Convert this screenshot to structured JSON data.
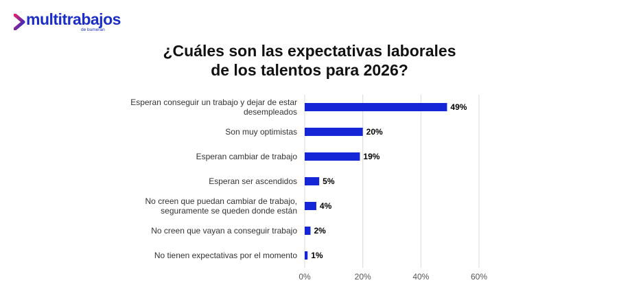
{
  "logo": {
    "brand": "multitrabajos",
    "sub": "de bumeran",
    "color": "#1b2ec8"
  },
  "chart_data": {
    "type": "bar",
    "orientation": "horizontal",
    "title_lines": [
      "¿Cuáles son las expectativas laborales",
      "de los talentos para 2026?"
    ],
    "categories": [
      [
        "Esperan conseguir un trabajo y dejar de estar",
        "desempleados"
      ],
      [
        "Son muy optimistas"
      ],
      [
        "Esperan cambiar de trabajo"
      ],
      [
        "Esperan ser ascendidos"
      ],
      [
        "No creen que puedan cambiar de trabajo,",
        "seguramente se queden donde están"
      ],
      [
        "No creen que vayan a conseguir trabajo"
      ],
      [
        "No tienen expectativas por el momento"
      ]
    ],
    "values": [
      49,
      20,
      19,
      5,
      4,
      2,
      1
    ],
    "value_labels": [
      "49%",
      "20%",
      "19%",
      "5%",
      "4%",
      "2%",
      "1%"
    ],
    "xlim": [
      0,
      60
    ],
    "x_ticks": [
      0,
      20,
      40,
      60
    ],
    "x_tick_labels": [
      "0%",
      "20%",
      "40%",
      "60%"
    ],
    "grid": "vertical",
    "bar_color": "#1426d6",
    "grid_color": "#d9d9d9",
    "legend": "none"
  }
}
